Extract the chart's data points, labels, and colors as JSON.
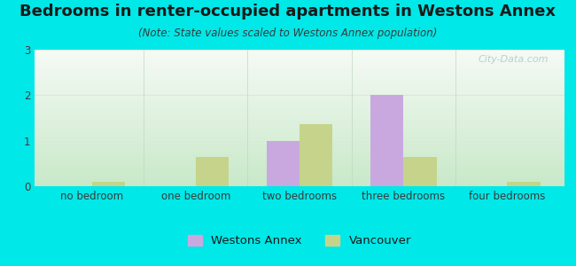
{
  "title": "Bedrooms in renter-occupied apartments in Westons Annex",
  "subtitle": "(Note: State values scaled to Westons Annex population)",
  "categories": [
    "no bedroom",
    "one bedroom",
    "two bedrooms",
    "three bedrooms",
    "four bedrooms"
  ],
  "westons_annex": [
    0.0,
    0.0,
    1.0,
    2.0,
    0.0
  ],
  "vancouver": [
    0.1,
    0.65,
    1.35,
    0.65,
    0.1
  ],
  "westons_color": "#c9a8e0",
  "vancouver_color": "#c5d48a",
  "background_color": "#00e8e8",
  "plot_bg_top": "#f5faf5",
  "plot_bg_bottom": "#c8e8c8",
  "ylim": [
    0,
    3
  ],
  "yticks": [
    0,
    1,
    2,
    3
  ],
  "bar_width": 0.32,
  "title_fontsize": 13,
  "subtitle_fontsize": 8.5,
  "tick_fontsize": 8.5,
  "legend_fontsize": 9.5,
  "watermark_text": "City-Data.com",
  "watermark_color": "#b0c8c8"
}
